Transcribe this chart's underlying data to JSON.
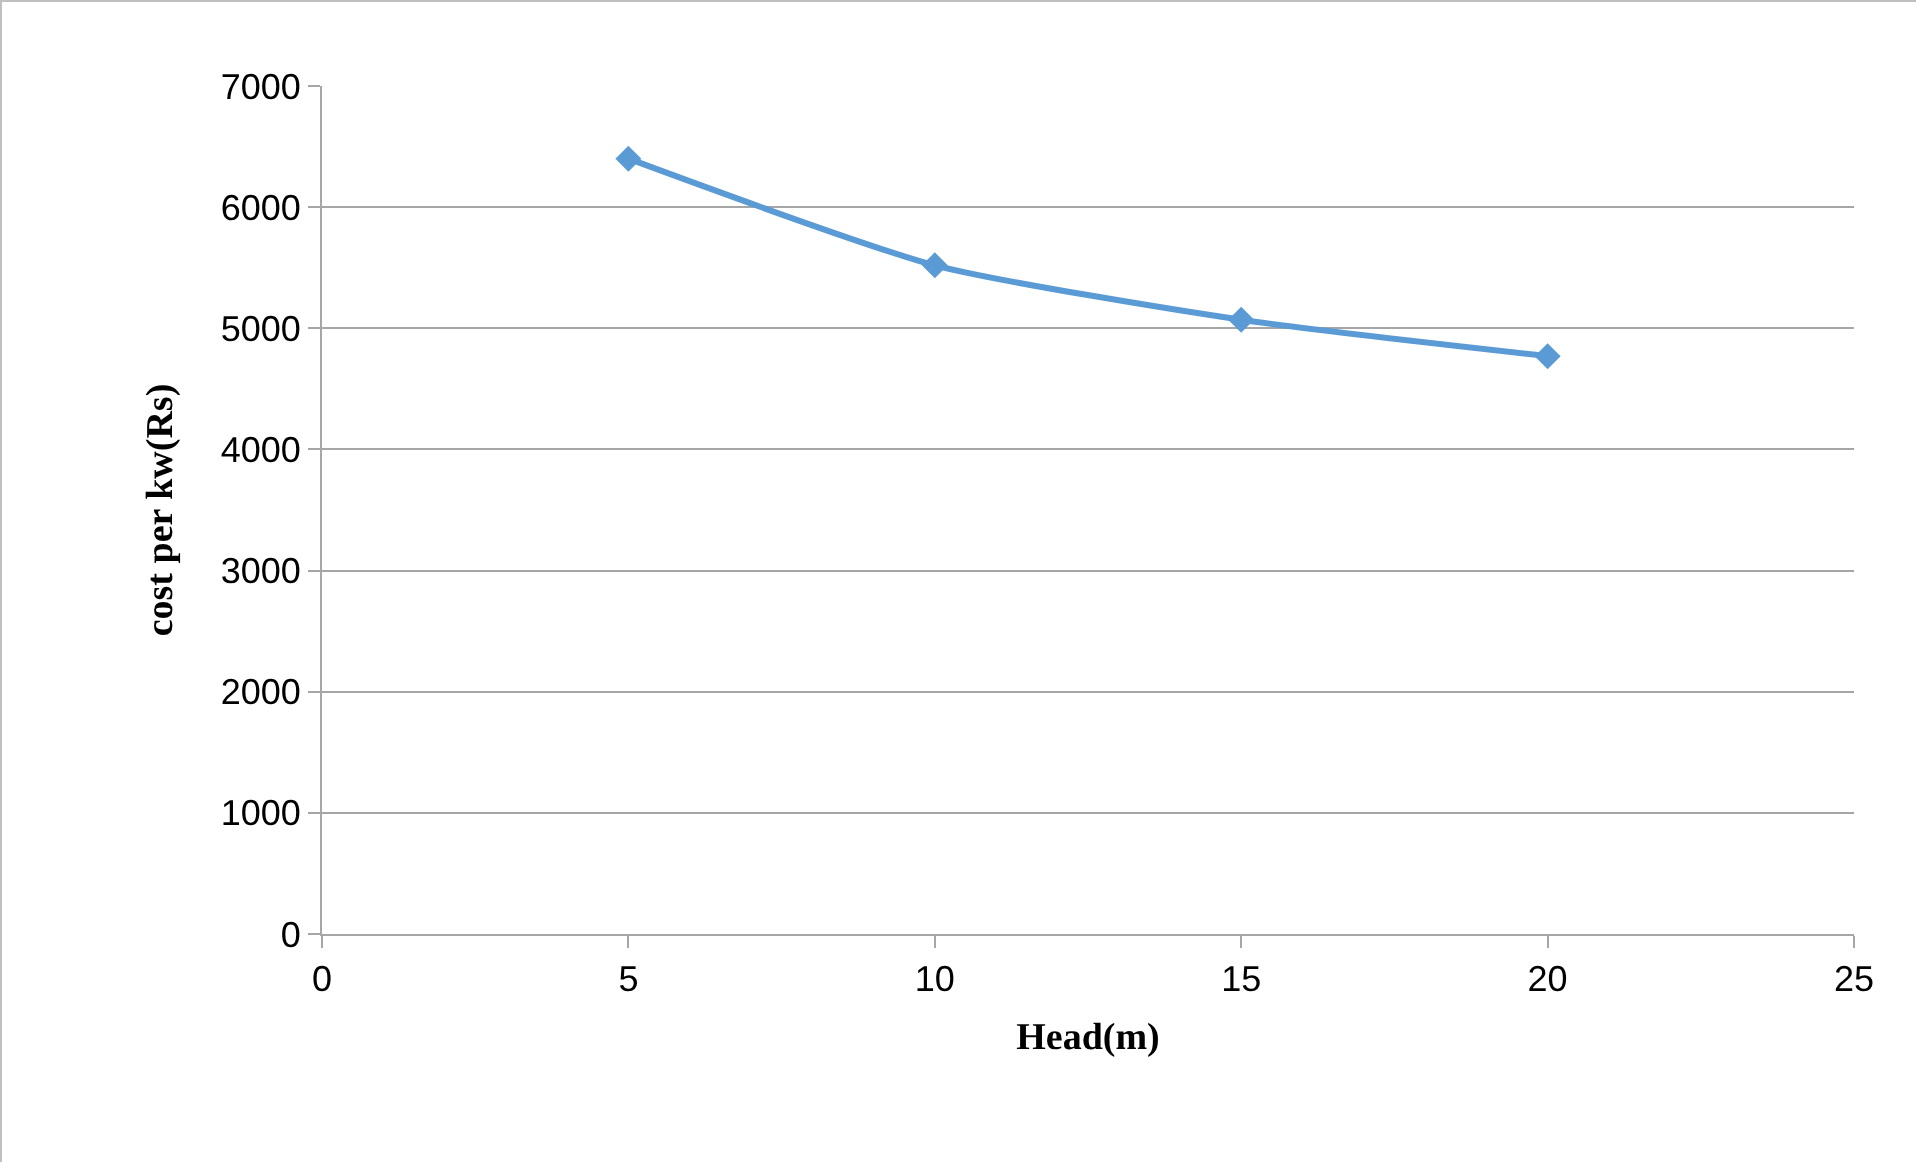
{
  "chart_data": {
    "type": "line",
    "xlabel": "Head(m)",
    "ylabel": "cost per kw(Rs)",
    "x": [
      5,
      10,
      15,
      20
    ],
    "series": [
      {
        "color": "#5b9bd5",
        "values": [
          6400,
          5520,
          5070,
          4770
        ]
      }
    ],
    "xlim": [
      0,
      25
    ],
    "xticks": [
      0,
      5,
      10,
      15,
      20,
      25
    ],
    "ylim": [
      0,
      7000
    ],
    "yticks": [
      0,
      1000,
      2000,
      3000,
      4000,
      5000,
      6000,
      7000
    ],
    "grid": "y",
    "marker": "diamond",
    "line_style": "solid"
  }
}
